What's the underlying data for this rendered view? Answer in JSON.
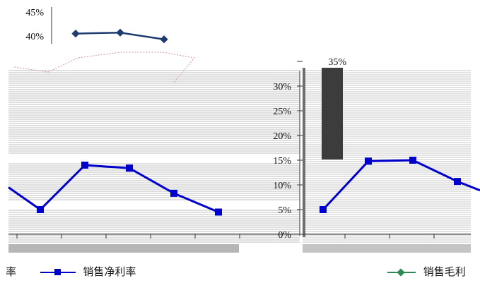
{
  "chart_data": [
    {
      "type": "line",
      "title": "",
      "xlabel": "",
      "ylabel": "",
      "y_tick_labels": [
        "45%",
        "40%"
      ],
      "ylim": [
        0,
        45
      ],
      "series": [
        {
          "name": "销售毛利率",
          "color": "#1f3c6e",
          "marker": "diamond",
          "values": [
            40.5,
            40.7,
            39.3
          ]
        },
        {
          "name": "销售净利率",
          "color": "#0000cc",
          "marker": "square",
          "values": [
            9.5,
            5.0,
            14.0,
            13.4,
            8.3,
            4.5
          ]
        }
      ],
      "legend": "bottom",
      "legend_labels": [
        "率",
        "销售净利率"
      ]
    },
    {
      "type": "line",
      "title": "",
      "xlabel": "",
      "ylabel": "",
      "y_tick_labels": [
        "35%",
        "30%",
        "25%",
        "20%",
        "15%",
        "10%",
        "5%",
        "0%"
      ],
      "ylim": [
        0,
        35
      ],
      "series": [
        {
          "name": "销售净利率",
          "color": "#0000cc",
          "marker": "square",
          "values": [
            5.0,
            14.8,
            15.0,
            10.7,
            8.9
          ]
        },
        {
          "name": "销售毛利率",
          "color": "#2e8b57",
          "marker": "diamond",
          "values": []
        }
      ],
      "legend": "bottom",
      "legend_labels": [
        "销售毛利"
      ]
    }
  ]
}
